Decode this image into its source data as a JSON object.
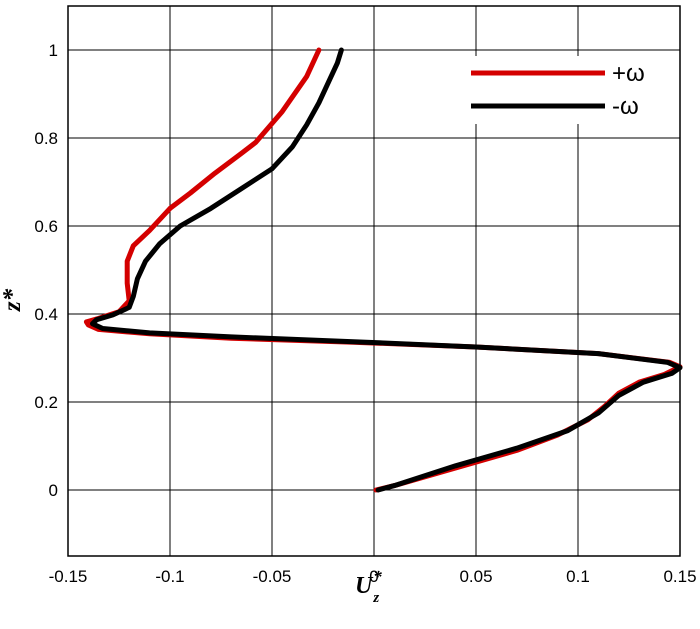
{
  "chart_data": {
    "type": "line",
    "xlabel": "U",
    "xlabel_sub": "z",
    "xlabel_sup": "*",
    "ylabel": "z*",
    "xlim": [
      -0.15,
      0.15
    ],
    "ylim": [
      -0.15,
      1.1
    ],
    "xticks": [
      -0.15,
      -0.1,
      -0.05,
      0,
      0.05,
      0.1,
      0.15
    ],
    "xtick_labels": [
      "-0.15",
      "-0.1",
      "-0.05",
      "0",
      "0.05",
      "0.1",
      "0.15"
    ],
    "yticks": [
      0,
      0.2,
      0.4,
      0.6,
      0.8,
      1
    ],
    "ytick_labels": [
      "0",
      "0.2",
      "0.4",
      "0.6",
      "0.8",
      "1"
    ],
    "grid": true,
    "legend_position": "top-right",
    "series": [
      {
        "name": "+ω",
        "color": "#d40000",
        "points": [
          [
            0.001,
            0.0
          ],
          [
            0.01,
            0.01
          ],
          [
            0.04,
            0.05
          ],
          [
            0.07,
            0.09
          ],
          [
            0.09,
            0.125
          ],
          [
            0.105,
            0.16
          ],
          [
            0.113,
            0.19
          ],
          [
            0.12,
            0.22
          ],
          [
            0.13,
            0.245
          ],
          [
            0.142,
            0.262
          ],
          [
            0.15,
            0.28
          ],
          [
            0.145,
            0.29
          ],
          [
            0.11,
            0.31
          ],
          [
            0.05,
            0.325
          ],
          [
            -0.01,
            0.336
          ],
          [
            -0.07,
            0.345
          ],
          [
            -0.11,
            0.355
          ],
          [
            -0.135,
            0.365
          ],
          [
            -0.14,
            0.375
          ],
          [
            -0.141,
            0.382
          ],
          [
            -0.135,
            0.39
          ],
          [
            -0.125,
            0.405
          ],
          [
            -0.12,
            0.43
          ],
          [
            -0.121,
            0.47
          ],
          [
            -0.121,
            0.52
          ],
          [
            -0.118,
            0.555
          ],
          [
            -0.11,
            0.59
          ],
          [
            -0.1,
            0.64
          ],
          [
            -0.09,
            0.675
          ],
          [
            -0.078,
            0.72
          ],
          [
            -0.065,
            0.765
          ],
          [
            -0.058,
            0.79
          ],
          [
            -0.045,
            0.86
          ],
          [
            -0.033,
            0.94
          ],
          [
            -0.027,
            1.0
          ]
        ]
      },
      {
        "name": "-ω",
        "color": "#000000",
        "points": [
          [
            0.002,
            0.0
          ],
          [
            0.01,
            0.01
          ],
          [
            0.04,
            0.055
          ],
          [
            0.07,
            0.095
          ],
          [
            0.095,
            0.135
          ],
          [
            0.11,
            0.175
          ],
          [
            0.12,
            0.215
          ],
          [
            0.132,
            0.245
          ],
          [
            0.146,
            0.265
          ],
          [
            0.15,
            0.278
          ],
          [
            0.144,
            0.29
          ],
          [
            0.11,
            0.31
          ],
          [
            0.05,
            0.325
          ],
          [
            -0.01,
            0.337
          ],
          [
            -0.07,
            0.348
          ],
          [
            -0.11,
            0.357
          ],
          [
            -0.133,
            0.367
          ],
          [
            -0.138,
            0.378
          ],
          [
            -0.136,
            0.387
          ],
          [
            -0.128,
            0.398
          ],
          [
            -0.12,
            0.415
          ],
          [
            -0.118,
            0.44
          ],
          [
            -0.116,
            0.48
          ],
          [
            -0.112,
            0.52
          ],
          [
            -0.105,
            0.56
          ],
          [
            -0.095,
            0.6
          ],
          [
            -0.08,
            0.64
          ],
          [
            -0.065,
            0.685
          ],
          [
            -0.05,
            0.73
          ],
          [
            -0.04,
            0.78
          ],
          [
            -0.033,
            0.83
          ],
          [
            -0.027,
            0.88
          ],
          [
            -0.022,
            0.93
          ],
          [
            -0.018,
            0.97
          ],
          [
            -0.016,
            1.0
          ]
        ]
      }
    ]
  }
}
